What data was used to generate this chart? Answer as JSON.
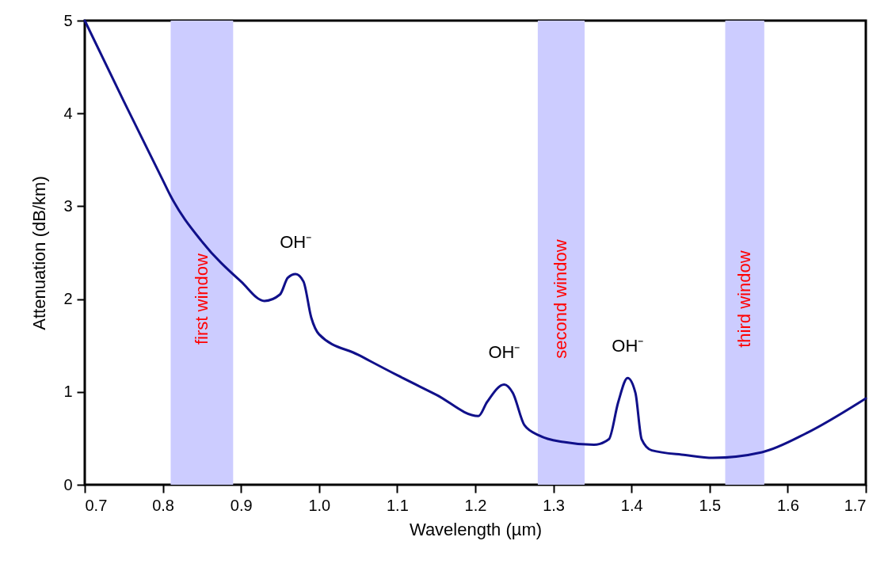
{
  "chart_data": {
    "type": "line",
    "xlabel": "Wavelength (µm)",
    "ylabel": "Attenuation (dB/km)",
    "x": [
      0.7,
      0.75,
      0.8,
      0.81,
      0.85,
      0.9,
      0.93,
      0.95,
      0.96,
      0.97,
      0.98,
      0.99,
      1.0,
      1.05,
      1.1,
      1.15,
      1.204,
      1.215,
      1.237,
      1.248,
      1.263,
      1.282,
      1.313,
      1.352,
      1.371,
      1.383,
      1.395,
      1.405,
      1.413,
      1.426,
      1.469,
      1.504,
      1.567,
      1.625,
      1.7
    ],
    "series": [
      {
        "color": "#10108a",
        "values": [
          5.0,
          4.13,
          3.28,
          3.11,
          2.62,
          2.19,
          1.98,
          2.05,
          2.23,
          2.27,
          2.19,
          1.8,
          1.62,
          1.4,
          1.18,
          0.97,
          0.74,
          0.89,
          1.08,
          0.99,
          0.64,
          0.53,
          0.46,
          0.43,
          0.49,
          0.89,
          1.15,
          0.99,
          0.49,
          0.37,
          0.32,
          0.29,
          0.35,
          0.56,
          0.93
        ]
      }
    ],
    "xlim": [
      0.7,
      1.7
    ],
    "xticks": [
      0.7,
      0.8,
      0.9,
      {
        "value": 1.0,
        "label": "1.0"
      },
      1.1,
      1.2,
      1.3,
      1.4,
      1.5,
      1.6,
      1.7
    ],
    "ylim": [
      0,
      5
    ],
    "yticks": [
      0,
      1,
      2,
      3,
      4,
      5
    ],
    "bands": [
      {
        "axis": "x",
        "from": 0.81,
        "to": 0.89,
        "label": "first window",
        "color": "#ccccff"
      },
      {
        "axis": "x",
        "from": 1.28,
        "to": 1.34,
        "label": "second window",
        "color": "#ccccff"
      },
      {
        "axis": "x",
        "from": 1.52,
        "to": 1.57,
        "label": "third window",
        "color": "#ccccff"
      }
    ],
    "annotations": [
      {
        "text": "OH⁻",
        "x": 0.97,
        "y": 2.27
      },
      {
        "text": "OH⁻",
        "x": 1.237,
        "y": 1.08
      },
      {
        "text": "OH⁻",
        "x": 1.395,
        "y": 1.15
      }
    ],
    "grid": false,
    "marker": "none",
    "line_style": "solid"
  }
}
